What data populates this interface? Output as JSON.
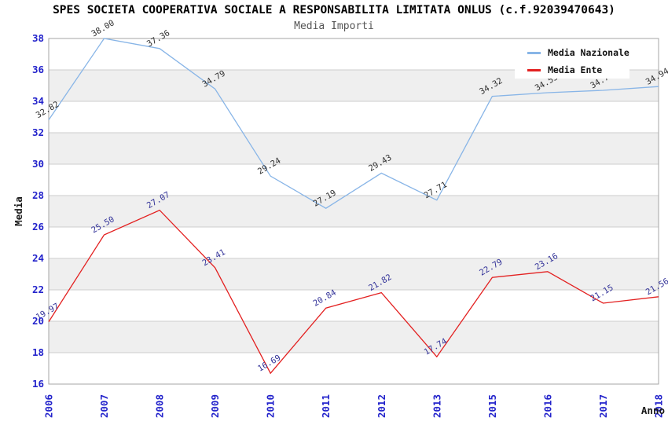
{
  "chart_data": {
    "type": "line",
    "title": "SPES SOCIETA COOPERATIVA SOCIALE A RESPONSABILITA LIMITATA ONLUS (c.f.92039470643)",
    "subtitle": "Media Importi",
    "xlabel": "Anno",
    "ylabel": "Media",
    "categories": [
      "2006",
      "2007",
      "2008",
      "2009",
      "2010",
      "2011",
      "2012",
      "2013",
      "2015",
      "2016",
      "2017",
      "2018"
    ],
    "ylim": [
      16,
      38
    ],
    "ytick_step": 2,
    "yticks": [
      "16",
      "18",
      "20",
      "22",
      "24",
      "26",
      "28",
      "30",
      "32",
      "34",
      "36",
      "38"
    ],
    "grid": true,
    "legend_position": "top-right",
    "series": [
      {
        "name": "Media Nazionale",
        "color": "#88b5e7",
        "label_color": "#303030",
        "values": [
          32.82,
          38.0,
          37.36,
          34.79,
          29.24,
          27.19,
          29.43,
          27.71,
          34.32,
          34.55,
          34.7,
          34.94
        ],
        "labels": [
          "32.82",
          "38.00",
          "37.36",
          "34.79",
          "29.24",
          "27.19",
          "29.43",
          "27.71",
          "34.32",
          "34.55",
          "34.70",
          "34.94"
        ]
      },
      {
        "name": "Media Ente",
        "color": "#e32020",
        "label_color": "#333399",
        "values": [
          19.97,
          25.5,
          27.07,
          23.41,
          16.69,
          20.84,
          21.82,
          17.74,
          22.79,
          23.16,
          21.15,
          21.56
        ],
        "labels": [
          "19.97",
          "25.50",
          "27.07",
          "23.41",
          "16.69",
          "20.84",
          "21.82",
          "17.74",
          "22.79",
          "23.16",
          "21.15",
          "21.56"
        ]
      }
    ],
    "colors": {
      "axis_tick": "#2323cb",
      "grid_line": "#cccccc",
      "band": "#efefef",
      "border": "#a6a6a6",
      "axis_title": "#1a1a1a",
      "title": "#000000",
      "subtitle": "#555555"
    }
  }
}
